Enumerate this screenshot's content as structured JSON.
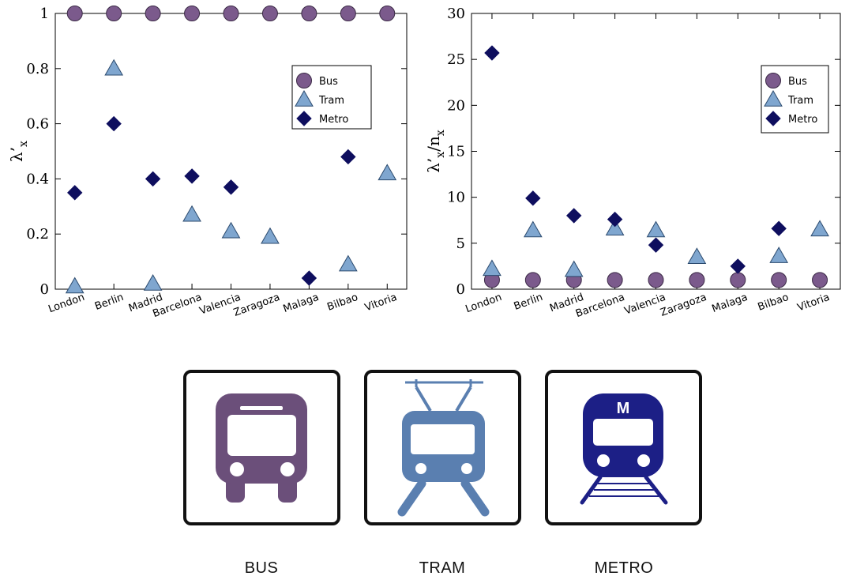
{
  "colors": {
    "bus": "#7b5a8c",
    "tram": "#7fa6cf",
    "metro": "#0e0e5e",
    "bus_icon": "#6b4f7a",
    "tram_icon": "#5a7fb0",
    "metro_icon": "#1c1f86"
  },
  "chart_data": [
    {
      "type": "scatter",
      "ylabel": "λ’x",
      "categories": [
        "London",
        "Berlin",
        "Madrid",
        "Barcelona",
        "Valencia",
        "Zaragoza",
        "Malaga",
        "Bilbao",
        "Vitoria"
      ],
      "ylim": [
        0,
        1
      ],
      "yticks": [
        0,
        0.2,
        0.4,
        0.6,
        0.8,
        1
      ],
      "ytick_labels": [
        "0",
        "0.2",
        "0.4",
        "0.6",
        "0.8",
        "1"
      ],
      "legend_position": "top-right",
      "series": [
        {
          "name": "Bus",
          "marker": "circle",
          "values": [
            1,
            1,
            1,
            1,
            1,
            1,
            1,
            1,
            1
          ]
        },
        {
          "name": "Tram",
          "marker": "triangle",
          "values": [
            0.01,
            0.8,
            0.02,
            0.27,
            0.21,
            0.19,
            null,
            0.09,
            0.42
          ]
        },
        {
          "name": "Metro",
          "marker": "diamond",
          "values": [
            0.35,
            0.6,
            0.4,
            0.41,
            0.37,
            null,
            0.04,
            0.48,
            null
          ]
        }
      ]
    },
    {
      "type": "scatter",
      "ylabel": "λ’x/nx",
      "categories": [
        "London",
        "Berlin",
        "Madrid",
        "Barcelona",
        "Valencia",
        "Zaragoza",
        "Malaga",
        "Bilbao",
        "Vitoria"
      ],
      "ylim": [
        0,
        30
      ],
      "yticks": [
        0,
        5,
        10,
        15,
        20,
        25,
        30
      ],
      "ytick_labels": [
        "0",
        "5",
        "10",
        "15",
        "20",
        "25",
        "30"
      ],
      "legend_position": "top-right",
      "series": [
        {
          "name": "Bus",
          "marker": "circle",
          "values": [
            1.0,
            1.0,
            1.0,
            1.0,
            1.0,
            1.0,
            1.0,
            1.0,
            1.0
          ]
        },
        {
          "name": "Tram",
          "marker": "triangle",
          "values": [
            2.2,
            6.4,
            2.1,
            6.6,
            6.4,
            3.5,
            null,
            3.6,
            6.5
          ]
        },
        {
          "name": "Metro",
          "marker": "diamond",
          "values": [
            25.7,
            9.9,
            8.0,
            7.6,
            4.8,
            null,
            2.5,
            6.6,
            null
          ]
        }
      ]
    }
  ],
  "icons": [
    {
      "name": "bus",
      "label": "BUS"
    },
    {
      "name": "tram",
      "label": "TRAM"
    },
    {
      "name": "metro",
      "label": "METRO",
      "badge": "M"
    }
  ]
}
